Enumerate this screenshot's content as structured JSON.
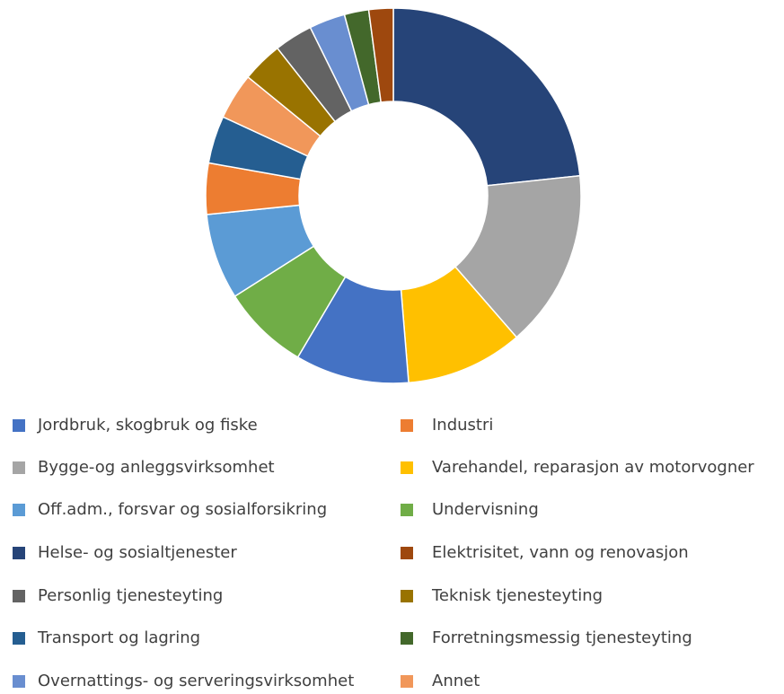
{
  "chart_data": {
    "type": "donut",
    "categories": [
      "Helse- og sosialtjenester",
      "Bygge-og anleggsvirksomhet",
      "Varehandel, reparasjon av motorvogner",
      "Jordbruk, skogbruk og fiske",
      "Undervisning",
      "Off.adm., forsvar og sosialforsikring",
      "Industri",
      "Transport og lagring",
      "Annet",
      "Teknisk tjenesteyting",
      "Personlig tjenesteyting",
      "Overnattings- og serveringsvirksomhet",
      "Forretningsmessig tjenesteyting",
      "Elektrisitet, vann og renovasjon"
    ],
    "values": [
      23.3,
      15.3,
      10.1,
      9.8,
      7.5,
      7.4,
      4.4,
      4.1,
      4.0,
      3.5,
      3.3,
      3.1,
      2.1,
      2.1
    ],
    "colors": [
      "#264478",
      "#a5a5a5",
      "#ffc000",
      "#4472c4",
      "#70ad47",
      "#5b9bd5",
      "#ed7d31",
      "#255e91",
      "#f1975a",
      "#997300",
      "#636363",
      "#698ed0",
      "#43682b",
      "#9e480e"
    ],
    "legend": "bottom"
  }
}
